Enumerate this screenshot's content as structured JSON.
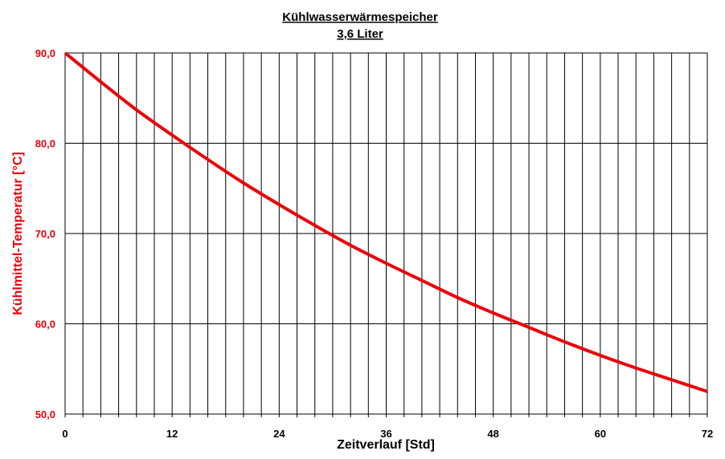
{
  "chart_data": {
    "type": "line",
    "title": "Kühlwasserwärmespeicher",
    "subtitle": "3,6 Liter",
    "xlabel": "Zeitverlauf [Std]",
    "ylabel": "Kühlmittel-Temperatur [°C]",
    "xlim": [
      0,
      72
    ],
    "ylim": [
      50,
      90
    ],
    "x_ticks": [
      "0",
      "12",
      "24",
      "36",
      "48",
      "60",
      "72"
    ],
    "y_ticks": [
      "50,0",
      "60,0",
      "70,0",
      "80,0",
      "90,0"
    ],
    "x_minor_step": 2,
    "grid": true,
    "legend": "none",
    "series": [
      {
        "color": "#e8000b",
        "x": [
          0,
          4,
          8,
          12,
          16,
          20,
          24,
          28,
          32,
          36,
          40,
          44,
          48,
          52,
          56,
          60,
          64,
          68,
          72
        ],
        "y": [
          90.0,
          86.8,
          83.7,
          80.9,
          78.2,
          75.6,
          73.2,
          70.9,
          68.7,
          66.7,
          64.8,
          62.9,
          61.2,
          59.6,
          58.0,
          56.5,
          55.1,
          53.8,
          52.5
        ]
      }
    ]
  }
}
